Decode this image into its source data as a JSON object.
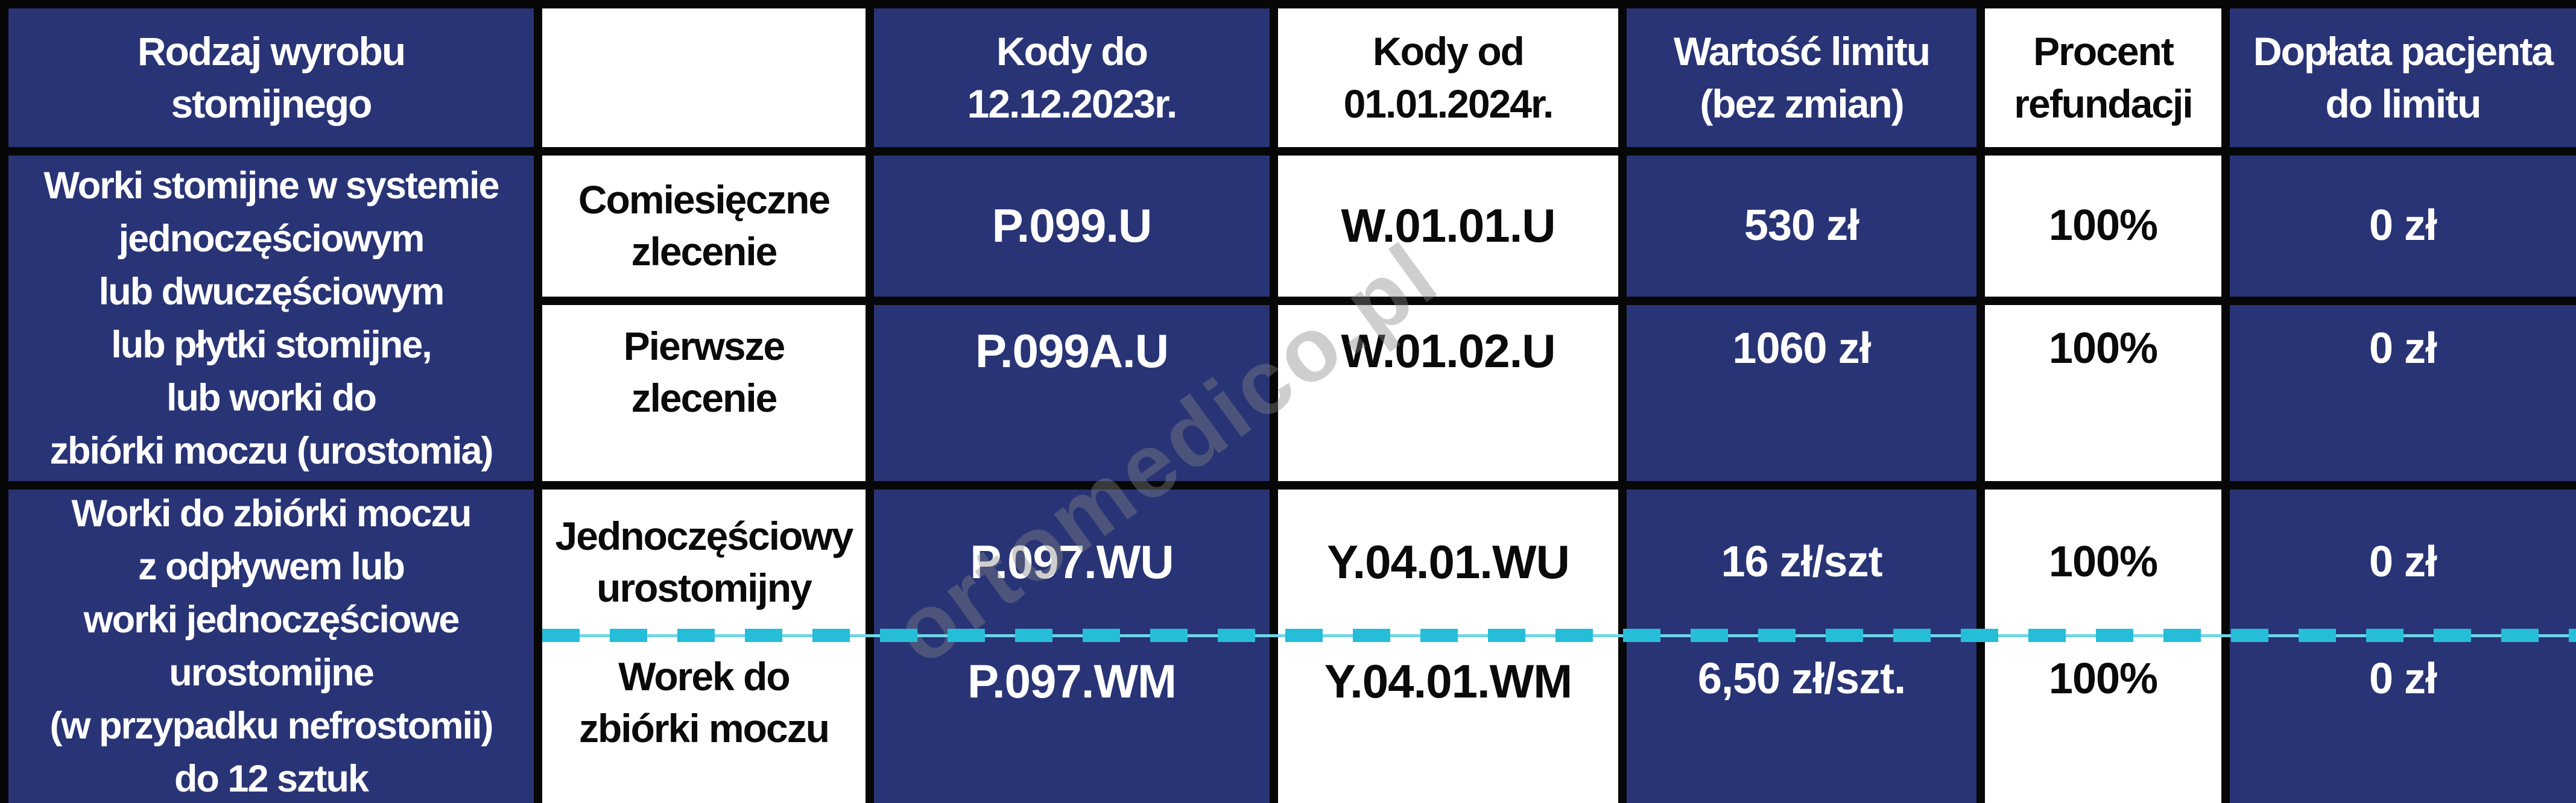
{
  "table": {
    "headers": {
      "product_type": "Rodzaj wyrobu\nstomijnego",
      "order_type": "",
      "codes_old": "Kody do\n12.12.2023r.",
      "codes_new": "Kody od\n01.01.2024r.",
      "limit_value": "Wartość limitu\n(bez zmian)",
      "refund_percent": "Procent\nrefundacji",
      "patient_copay": "Dopłata pacjenta\ndo limitu"
    },
    "groups": [
      {
        "category": "Worki stomijne w systemie\njednoczęściowym\nlub dwuczęściowym\nlub płytki stomijne,\nlub worki do\nzbiórki moczu (urostomia)",
        "rows": [
          {
            "order": "Comiesięczne\nzlecenie",
            "code_old": "P.099.U",
            "code_new": "W.01.01.U",
            "limit": "530 zł",
            "refund": "100%",
            "copay": "0 zł"
          },
          {
            "order": "Pierwsze\nzlecenie",
            "code_old": "P.099A.U",
            "code_new": "W.01.02.U",
            "limit": "1060 zł",
            "refund": "100%",
            "copay": "0 zł"
          }
        ]
      },
      {
        "category": "Worki do zbiórki moczu\nz odpływem lub\nworki jednoczęściowe\nurostomijne\n(w przypadku nefrostomii)\ndo 12 sztuk",
        "rows": [
          {
            "order": "Jednoczęściowy\nurostomijny",
            "code_old": "P.097.WU",
            "code_new": "Y.04.01.WU",
            "limit": "16 zł/szt",
            "refund": "100%",
            "copay": "0 zł"
          },
          {
            "order": "Worek do\nzbiórki moczu",
            "code_old": "P.097.WM",
            "code_new": "Y.04.01.WM",
            "limit": "6,50 zł/szt.",
            "refund": "100%",
            "copay": "0 zł"
          }
        ]
      }
    ]
  },
  "watermark": "ortomedico.pl",
  "colors": {
    "navy": "#293476",
    "border_black": "#070707",
    "dash_teal": "#26bdd8",
    "dash_line_light": "#6fd5e6",
    "watermark_grey": "#848484"
  }
}
